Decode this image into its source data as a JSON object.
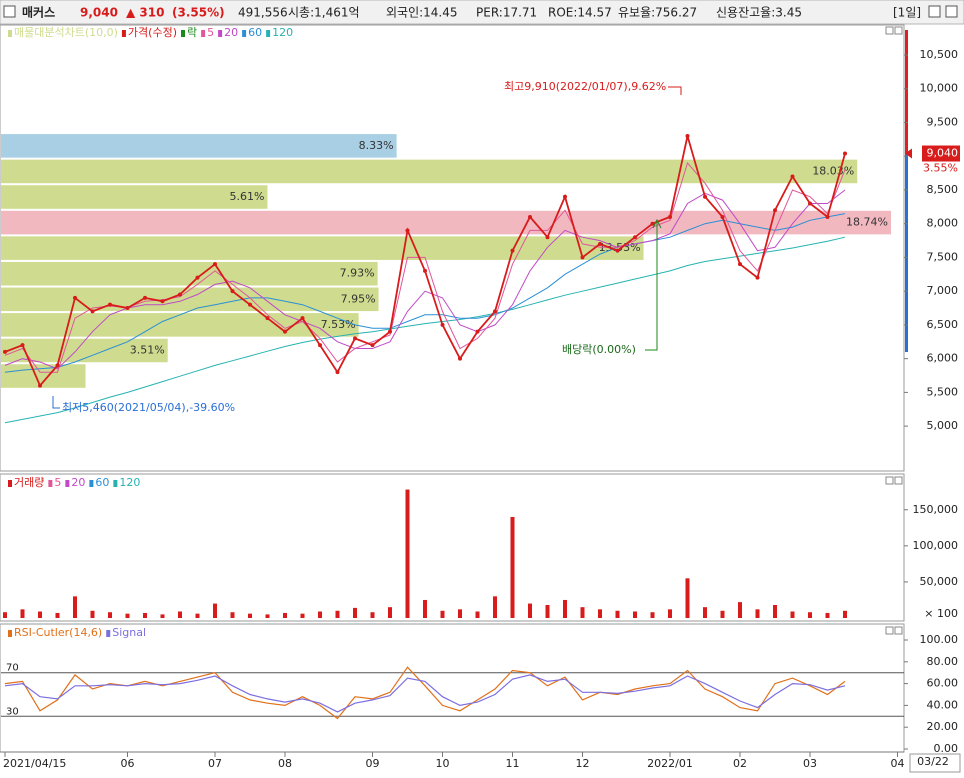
{
  "header": {
    "name": "매커스",
    "price": "9,040",
    "change": "▲ 310",
    "change_pct": "(3.55%)",
    "volume": "491,556",
    "market_cap": "시총:1,461억",
    "foreign": "외국인:14.45",
    "per": "PER:17.71",
    "roe": "ROE:14.57",
    "reserve": "유보율:756.27",
    "credit": "신용잔고율:3.45",
    "period": "[1일]"
  },
  "chart_data": [
    {
      "type": "line",
      "panel": "price",
      "categories": [
        "2021/04/15",
        null,
        null,
        null,
        null,
        null,
        null,
        "06",
        null,
        null,
        null,
        null,
        "07",
        null,
        null,
        null,
        "08",
        null,
        null,
        null,
        null,
        "09",
        null,
        null,
        null,
        "10",
        null,
        null,
        null,
        "11",
        null,
        null,
        null,
        "12",
        null,
        null,
        null,
        null,
        "2022/01",
        null,
        null,
        null,
        "02",
        null,
        null,
        null,
        "03",
        null,
        null,
        null,
        null,
        "04"
      ],
      "current_date": "03/22",
      "ylim": [
        4350,
        10900
      ],
      "yticks": [
        {
          "value": 5000,
          "label": "5,000"
        },
        {
          "value": 5500,
          "label": "5,500"
        },
        {
          "value": 6000,
          "label": "6,000"
        },
        {
          "value": 6500,
          "label": "6,500"
        },
        {
          "value": 7000,
          "label": "7,000"
        },
        {
          "value": 7500,
          "label": "7,500"
        },
        {
          "value": 8000,
          "label": "8,000"
        },
        {
          "value": 8500,
          "label": "8,500"
        },
        {
          "value": 9000,
          "label": "9,000"
        },
        {
          "value": 9500,
          "label": "9,500"
        },
        {
          "value": 10000,
          "label": "10,000"
        },
        {
          "value": 10500,
          "label": "10,500"
        }
      ],
      "bands": {
        "name": "매물대분석차트(10,0)",
        "edges": [
          9343,
          8964,
          8585,
          8206,
          7827,
          7448,
          7069,
          6690,
          6311,
          5932,
          5553
        ],
        "values": [
          8.33,
          18.03,
          5.61,
          18.74,
          13.53,
          7.93,
          7.95,
          7.53,
          3.51,
          1.78
        ],
        "value_labels": [
          "8.33%",
          "18.03%",
          "5.61%",
          "18.74%",
          "13.53%",
          "7.93%",
          "7.95%",
          "7.53%",
          "3.51%",
          null
        ],
        "colors": [
          "#a9cfe4",
          "#cfdc8f",
          "#cfdc8f",
          "#f2b8c0",
          "#cfdc8f",
          "#cfdc8f",
          "#cfdc8f",
          "#cfdc8f",
          "#cfdc8f",
          "#cfdc8f"
        ]
      },
      "ex_rights_legend": {
        "name": "락",
        "color": "#1a8a1a"
      },
      "series": [
        {
          "name": "가격(수정)",
          "color": "#d81b1b",
          "values": [
            6100,
            6200,
            5600,
            5900,
            6900,
            6700,
            6800,
            6750,
            6900,
            6850,
            6950,
            7200,
            7400,
            7000,
            6800,
            6600,
            6400,
            6600,
            6200,
            5800,
            6300,
            6200,
            6400,
            7900,
            7300,
            6500,
            6000,
            6400,
            6700,
            7600,
            8100,
            7800,
            8400,
            7500,
            7700,
            7600,
            7800,
            8000,
            8100,
            9300,
            8400,
            8100,
            7400,
            7200,
            8200,
            8700,
            8300,
            8100,
            9040,
            null,
            null,
            null
          ]
        },
        {
          "name": "5",
          "color": "#e0569a",
          "values": [
            6050,
            6150,
            5800,
            5800,
            6600,
            6750,
            6780,
            6760,
            6850,
            6870,
            6920,
            7100,
            7300,
            7100,
            6900,
            6650,
            6450,
            6550,
            6300,
            5950,
            6150,
            6250,
            6350,
            7500,
            7500,
            6700,
            6150,
            6300,
            6600,
            7400,
            7900,
            7900,
            8200,
            7700,
            7650,
            7650,
            7750,
            7950,
            8050,
            8900,
            8600,
            8200,
            7600,
            7300,
            7900,
            8500,
            8400,
            8150,
            8800,
            null,
            null,
            null
          ]
        },
        {
          "name": "20",
          "color": "#c04ac8",
          "values": [
            5900,
            6000,
            5950,
            5850,
            6100,
            6400,
            6650,
            6750,
            6800,
            6800,
            6850,
            6950,
            7100,
            7150,
            7050,
            6850,
            6650,
            6550,
            6450,
            6250,
            6150,
            6150,
            6250,
            6700,
            7000,
            6900,
            6500,
            6400,
            6500,
            6800,
            7300,
            7650,
            7900,
            7800,
            7750,
            7650,
            7700,
            7750,
            7850,
            8300,
            8450,
            8350,
            8000,
            7600,
            7650,
            8000,
            8300,
            8300,
            8500,
            null,
            null,
            null
          ]
        },
        {
          "name": "60",
          "color": "#2a8fd6",
          "values": [
            5800,
            5830,
            5850,
            5870,
            5950,
            6050,
            6150,
            6250,
            6400,
            6550,
            6650,
            6750,
            6800,
            6850,
            6900,
            6900,
            6850,
            6800,
            6700,
            6600,
            6500,
            6450,
            6450,
            6550,
            6650,
            6650,
            6600,
            6600,
            6650,
            6750,
            6900,
            7050,
            7250,
            7400,
            7550,
            7650,
            7700,
            7750,
            7800,
            7900,
            8000,
            8050,
            8000,
            7950,
            7900,
            7950,
            8050,
            8100,
            8150,
            null,
            null,
            null
          ]
        },
        {
          "name": "120",
          "color": "#26b3b0",
          "values": [
            5050,
            5100,
            5150,
            5200,
            5270,
            5350,
            5430,
            5500,
            5580,
            5660,
            5740,
            5820,
            5900,
            5970,
            6040,
            6110,
            6180,
            6240,
            6290,
            6330,
            6370,
            6400,
            6440,
            6480,
            6520,
            6550,
            6580,
            6620,
            6670,
            6730,
            6800,
            6870,
            6940,
            7000,
            7060,
            7120,
            7180,
            7240,
            7300,
            7380,
            7440,
            7480,
            7520,
            7560,
            7600,
            7640,
            7690,
            7740,
            7800,
            null,
            null,
            null
          ]
        }
      ],
      "current": {
        "price": {
          "value": 9040,
          "label": "9,040"
        },
        "change_label": "3.55%"
      },
      "annotations": {
        "high": "최고9,910(2022/01/07),9.62%",
        "low": "최저5,460(2021/05/04),-39.60%",
        "ex_dividend": "배당락(0.00%)"
      }
    },
    {
      "type": "bar",
      "panel": "volume",
      "name": "거래량",
      "color": "#d81b1b",
      "values": [
        8000,
        12000,
        9000,
        7000,
        30000,
        10000,
        8000,
        6000,
        7000,
        5000,
        9000,
        6000,
        20000,
        8000,
        6000,
        5000,
        7000,
        6000,
        9000,
        10000,
        14000,
        8000,
        15000,
        178000,
        25000,
        10000,
        12000,
        9000,
        30000,
        140000,
        20000,
        18000,
        25000,
        15000,
        12000,
        10000,
        9000,
        8000,
        12000,
        55000,
        15000,
        10000,
        22000,
        12000,
        18000,
        9000,
        8000,
        7000,
        10000,
        null,
        null,
        null
      ],
      "legend": [
        {
          "name": "5",
          "color": "#e0569a"
        },
        {
          "name": "20",
          "color": "#c04ac8"
        },
        {
          "name": "60",
          "color": "#2a8fd6"
        },
        {
          "name": "120",
          "color": "#26b3b0"
        }
      ],
      "ylim": [
        0,
        194000
      ],
      "yticks": [
        {
          "value": 50000,
          "label": "50,000"
        },
        {
          "value": 100000,
          "label": "100,000"
        },
        {
          "value": 150000,
          "label": "150,000"
        }
      ],
      "unit": "× 100"
    },
    {
      "type": "line",
      "panel": "rsi",
      "series": [
        {
          "name": "RSI-Cutler(14,6)",
          "color": "#e0701a",
          "values": [
            60,
            62,
            35,
            45,
            68,
            55,
            60,
            58,
            62,
            58,
            62,
            66,
            70,
            52,
            45,
            42,
            40,
            48,
            40,
            28,
            48,
            46,
            52,
            75,
            58,
            40,
            35,
            45,
            55,
            72,
            70,
            58,
            66,
            45,
            52,
            50,
            55,
            58,
            60,
            72,
            55,
            48,
            38,
            35,
            60,
            65,
            58,
            50,
            62,
            null,
            null,
            null
          ]
        },
        {
          "name": "Signal",
          "color": "#7b6fe0",
          "values": [
            58,
            60,
            48,
            46,
            58,
            58,
            59,
            58,
            60,
            59,
            60,
            63,
            67,
            58,
            50,
            46,
            43,
            46,
            42,
            34,
            42,
            45,
            49,
            65,
            62,
            48,
            40,
            43,
            50,
            64,
            68,
            62,
            64,
            52,
            52,
            51,
            53,
            56,
            58,
            67,
            60,
            52,
            44,
            38,
            50,
            60,
            59,
            54,
            58,
            null,
            null,
            null
          ]
        }
      ],
      "levels": [
        70,
        30
      ],
      "ylim": [
        0,
        111
      ],
      "yticks": [
        {
          "value": 0,
          "label": "0.00"
        },
        {
          "value": 20,
          "label": "20.00"
        },
        {
          "value": 40,
          "label": "40.00"
        },
        {
          "value": 60,
          "label": "60.00"
        },
        {
          "value": 80,
          "label": "80.00"
        },
        {
          "value": 100,
          "label": "100.00"
        }
      ]
    }
  ]
}
